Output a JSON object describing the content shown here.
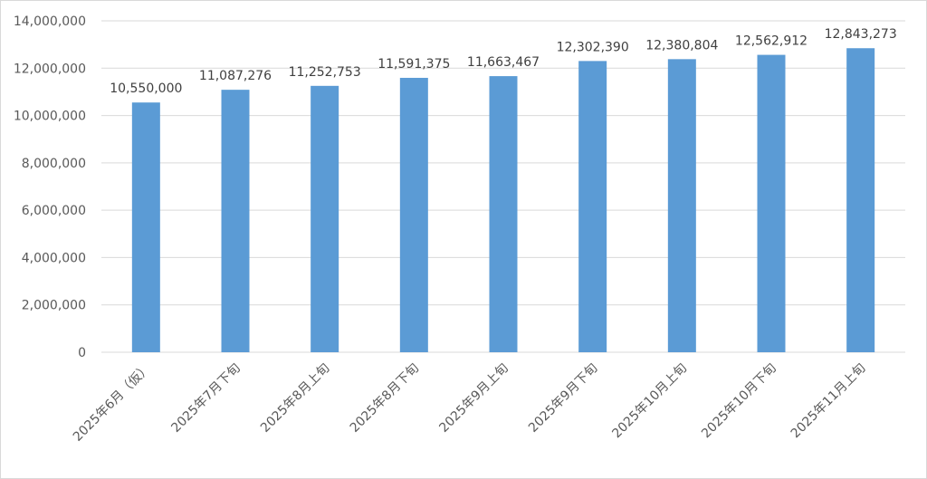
{
  "chart_data": {
    "type": "bar",
    "categories": [
      "2025年6月（仮）",
      "2025年7月下旬",
      "2025年8月上旬",
      "2025年8月下旬",
      "2025年9月上旬",
      "2025年9月下旬",
      "2025年10月上旬",
      "2025年10月下旬",
      "2025年11月上旬"
    ],
    "values": [
      10550000,
      11087276,
      11252753,
      11591375,
      11663467,
      12302390,
      12380804,
      12562912,
      12843273
    ],
    "data_labels": [
      "10,550,000",
      "11,087,276",
      "11,252,753",
      "11,591,375",
      "11,663,467",
      "12,302,390",
      "12,380,804",
      "12,562,912",
      "12,843,273"
    ],
    "y_ticks": [
      {
        "value": 0,
        "label": "0"
      },
      {
        "value": 2000000,
        "label": "2,000,000"
      },
      {
        "value": 4000000,
        "label": "4,000,000"
      },
      {
        "value": 6000000,
        "label": "6,000,000"
      },
      {
        "value": 8000000,
        "label": "8,000,000"
      },
      {
        "value": 10000000,
        "label": "10,000,000"
      },
      {
        "value": 12000000,
        "label": "12,000,000"
      },
      {
        "value": 14000000,
        "label": "14,000,000"
      }
    ],
    "ylim": [
      0,
      14000000
    ],
    "grid": true,
    "bar_color": "#5b9bd5",
    "grid_color": "#d9d9d9",
    "title": "",
    "xlabel": "",
    "ylabel": ""
  }
}
